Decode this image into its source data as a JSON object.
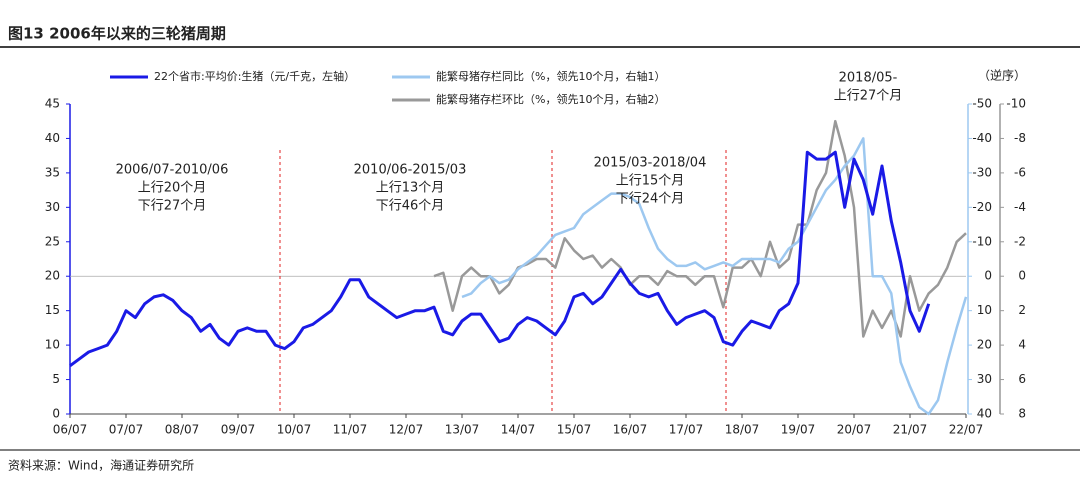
{
  "chart_data": {
    "type": "line",
    "title": "图13 2006年以来的三轮猪周期",
    "source": "资料来源：Wind，海通证券研究所",
    "axis_note": "（逆序）",
    "categories": [
      "06/07",
      null,
      null,
      null,
      null,
      null,
      "07/07",
      null,
      null,
      null,
      null,
      null,
      "08/07",
      null,
      null,
      null,
      null,
      null,
      "09/07",
      null,
      null,
      null,
      null,
      null,
      "10/07",
      null,
      null,
      null,
      null,
      null,
      "11/07",
      null,
      null,
      null,
      null,
      null,
      "12/07",
      null,
      null,
      null,
      null,
      null,
      "13/07",
      null,
      null,
      null,
      null,
      null,
      "14/07",
      null,
      null,
      null,
      null,
      null,
      "15/07",
      null,
      null,
      null,
      null,
      null,
      "16/07",
      null,
      null,
      null,
      null,
      null,
      "17/07",
      null,
      null,
      null,
      null,
      null,
      "18/07",
      null,
      null,
      null,
      null,
      null,
      "19/07",
      null,
      null,
      null,
      null,
      null,
      "20/07",
      null,
      null,
      null,
      null,
      null,
      "21/07",
      null,
      null,
      null,
      null,
      null,
      "22/07"
    ],
    "ylim": [
      0,
      45
    ],
    "yticks": [
      0,
      5,
      10,
      15,
      20,
      25,
      30,
      35,
      40,
      45
    ],
    "y2lim": [
      -50,
      40
    ],
    "y2ticks": [
      -50,
      -40,
      -30,
      -20,
      -10,
      0,
      10,
      20,
      30,
      40
    ],
    "y3lim": [
      -10,
      8
    ],
    "y3ticks": [
      -10,
      -8,
      -6,
      -4,
      -2,
      0,
      2,
      4,
      6,
      8
    ],
    "series": [
      {
        "name": "22个省市:平均价:生猪（元/千克，左轴）",
        "color": "#1a1ae6",
        "values": [
          7,
          8,
          9,
          9.5,
          10,
          12,
          15,
          14,
          16,
          17,
          17.3,
          16.5,
          15,
          14,
          12,
          13,
          11,
          10,
          12,
          12.5,
          12,
          12,
          10,
          9.5,
          10.5,
          12.5,
          13,
          14,
          15,
          17,
          19.5,
          19.5,
          17,
          16,
          15,
          14,
          14.5,
          15,
          15,
          15.5,
          12,
          11.5,
          13.5,
          14.5,
          14.5,
          12.5,
          10.5,
          11,
          13,
          14,
          13.5,
          12.5,
          11.5,
          13.5,
          17,
          17.5,
          16,
          17,
          19,
          21,
          19,
          17.5,
          17,
          17.5,
          15,
          13,
          14,
          14.5,
          15,
          14,
          10.5,
          10,
          12,
          13.5,
          13,
          12.5,
          15,
          16,
          19,
          38,
          37,
          37,
          38,
          30,
          37,
          34,
          29,
          36,
          28,
          22,
          15,
          12,
          16,
          null,
          null,
          null,
          null
        ]
      },
      {
        "name": "能繁母猪存栏同比（%，领先10个月，右轴1）",
        "color": "#9dc8f0",
        "axis": "y2",
        "values": [
          null,
          null,
          null,
          null,
          null,
          null,
          null,
          null,
          null,
          null,
          null,
          null,
          null,
          null,
          null,
          null,
          null,
          null,
          null,
          null,
          null,
          null,
          null,
          null,
          null,
          null,
          null,
          null,
          null,
          null,
          null,
          null,
          null,
          null,
          null,
          null,
          null,
          null,
          null,
          null,
          null,
          null,
          6,
          5,
          2,
          0,
          2,
          1,
          -2,
          -4,
          -6,
          -9,
          -12,
          -13,
          -14,
          -18,
          -20,
          -22,
          -24,
          -24,
          -23,
          -21,
          -14,
          -8,
          -5,
          -3,
          -3,
          -4,
          -2,
          -3,
          -4,
          -3,
          -5,
          -5,
          -5,
          -5,
          -4,
          -8,
          -10,
          -15,
          -20,
          -25,
          -28,
          -32,
          -35,
          -40,
          0,
          0,
          5,
          25,
          32,
          38,
          40,
          36,
          25,
          15,
          6
        ]
      },
      {
        "name": "能繁母猪存栏环比（%，领先10个月，右轴2）",
        "color": "#999999",
        "axis": "y3",
        "values": [
          null,
          null,
          null,
          null,
          null,
          null,
          null,
          null,
          null,
          null,
          null,
          null,
          null,
          null,
          null,
          null,
          null,
          null,
          null,
          null,
          null,
          null,
          null,
          null,
          null,
          null,
          null,
          null,
          null,
          null,
          null,
          null,
          null,
          null,
          null,
          null,
          null,
          null,
          null,
          0,
          -0.2,
          2,
          0,
          -0.5,
          0,
          0,
          1,
          0.5,
          -0.5,
          -0.7,
          -1,
          -1,
          -0.5,
          -2.2,
          -1.5,
          -1,
          -1.2,
          -0.5,
          -1,
          -0.5,
          0.5,
          0,
          0,
          0.5,
          -0.3,
          0,
          0,
          0.5,
          0,
          0,
          1.8,
          -0.5,
          -0.5,
          -1,
          0,
          -2,
          -0.5,
          -1,
          -3,
          -3,
          -5,
          -6,
          -9,
          -7,
          -4,
          3.5,
          2,
          3,
          2,
          3.5,
          0,
          2,
          1,
          0.5,
          -0.5,
          -2,
          -2.5
        ]
      }
    ],
    "annotations": [
      [
        "2006/07-2010/06",
        "上行20个月",
        "下行27个月"
      ],
      [
        "2010/06-2015/03",
        "上行13个月",
        "下行46个月"
      ],
      [
        "2015/03-2018/04",
        "上行15个月",
        "下行24个月"
      ],
      [
        "2018/05-",
        "上行27个月"
      ]
    ]
  }
}
